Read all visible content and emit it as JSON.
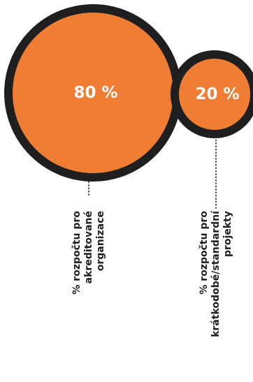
{
  "chart_data": {
    "type": "bubble",
    "series": [
      {
        "name": "",
        "points": [
          {
            "value": 80,
            "display": "80 %",
            "label_lines": [
              "% rozpočtu pro",
              "akreditované",
              "organizace"
            ]
          },
          {
            "value": 20,
            "display": "20 %",
            "label_lines": [
              "% rozpočtu pro",
              "krátkodobé/standardní",
              "projekty"
            ]
          }
        ]
      }
    ],
    "title": "",
    "legend": "none",
    "grid": false
  },
  "colors": {
    "bubble_fill": "#ef7d33",
    "bubble_outline": "#1f1f1f",
    "bubble_text": "#ffffff",
    "label_text": "#1f1f1f"
  }
}
